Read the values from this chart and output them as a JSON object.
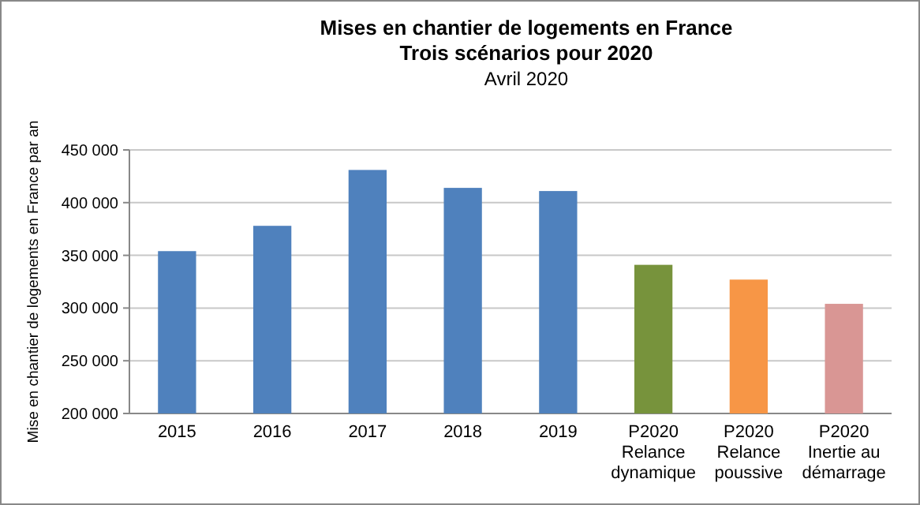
{
  "chart_data": {
    "type": "bar",
    "title": "Mises en chantier de logements en France\nTrois scénarios pour 2020",
    "subtitle": "Avril 2020",
    "ylabel": "Mise en chantier de logements en France par an",
    "categories": [
      "2015",
      "2016",
      "2017",
      "2018",
      "2019",
      "P2020\nRelance\ndynamique",
      "P2020\nRelance\npoussive",
      "P2020\nInertie au\ndémarrage"
    ],
    "values": [
      354000,
      378000,
      431000,
      414000,
      411000,
      341000,
      327000,
      304000
    ],
    "colors": [
      "#4f81bd",
      "#4f81bd",
      "#4f81bd",
      "#4f81bd",
      "#4f81bd",
      "#77933c",
      "#f79646",
      "#d99694"
    ],
    "ylim": [
      200000,
      450000
    ],
    "yticks": [
      {
        "value": 200000,
        "label": "200 000"
      },
      {
        "value": 250000,
        "label": "250 000"
      },
      {
        "value": 300000,
        "label": "300 000"
      },
      {
        "value": 350000,
        "label": "350 000"
      },
      {
        "value": 400000,
        "label": "400 000"
      },
      {
        "value": 450000,
        "label": "450 000"
      }
    ],
    "grid": "y"
  }
}
